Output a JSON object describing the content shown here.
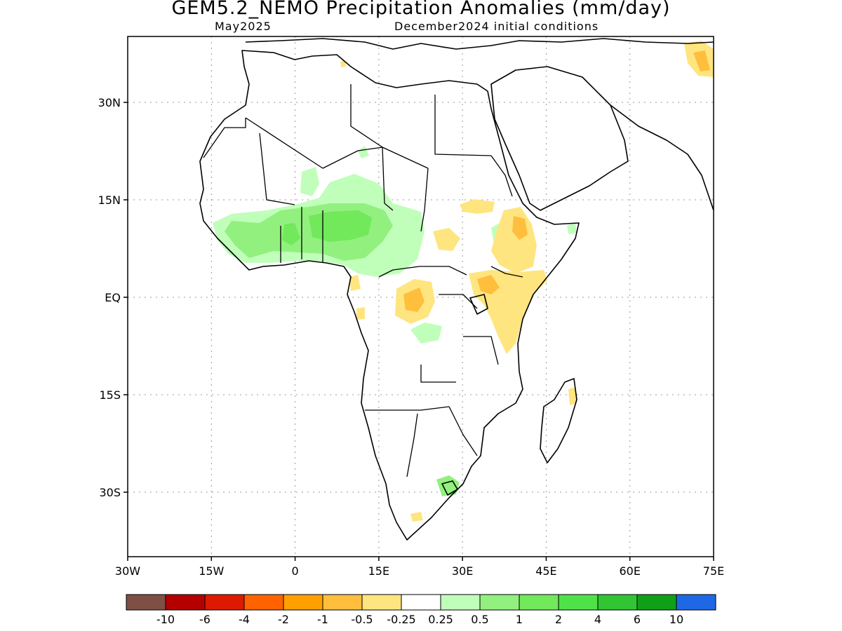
{
  "header": {
    "title": "GEM5.2_NEMO Precipitation Anomalies (mm/day)",
    "valid_month": "May2025",
    "init": "December2024 initial conditions"
  },
  "map": {
    "lon_ticks": [
      "30W",
      "15W",
      "0",
      "15E",
      "30E",
      "45E",
      "60E",
      "75E"
    ],
    "lat_ticks": [
      "30N",
      "15N",
      "EQ",
      "15S",
      "30S"
    ]
  },
  "colorbar": {
    "colors": [
      "#7f4f44",
      "#b50000",
      "#dd1a00",
      "#ff6300",
      "#ff9f00",
      "#ffbe3c",
      "#ffe57f",
      "#ffffff",
      "#c0ffba",
      "#92f07f",
      "#72e85b",
      "#4fe148",
      "#31c534",
      "#10a018",
      "#1f68e5"
    ],
    "labels": [
      "-10",
      "-6",
      "-4",
      "-2",
      "-1",
      "-0.5",
      "-0.25",
      "0.25",
      "0.5",
      "1",
      "2",
      "4",
      "6",
      "10"
    ]
  },
  "legend_colors": {
    "wet_light": "#c0ffba",
    "wet_mid": "#92f07f",
    "wet_strong": "#72e85b",
    "dry_light": "#ffe57f",
    "dry_mid": "#ffbe3c"
  }
}
